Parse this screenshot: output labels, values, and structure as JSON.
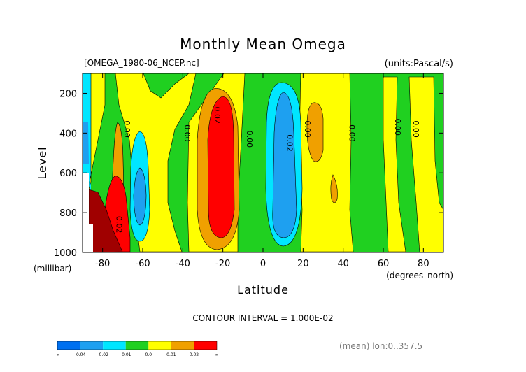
{
  "header": {
    "title": "Monthly Mean Omega",
    "file_label": "[OMEGA_1980-06_NCEP.nc]",
    "units_label": "(units:Pascal/s)"
  },
  "footer": {
    "contour_interval": "CONTOUR INTERVAL = 1.000E-02",
    "mean_note": "(mean) lon:0..357.5"
  },
  "chart_data": {
    "type": "heatmap",
    "title": "Monthly Mean Omega",
    "xlabel": "Latitude",
    "xunits": "(degrees_north)",
    "ylabel": "Level",
    "yunits": "(millibar)",
    "xlim": [
      -90,
      90
    ],
    "ylim": [
      1000,
      100
    ],
    "x_ticks": [
      -80,
      -60,
      -40,
      -20,
      0,
      20,
      40,
      60,
      80
    ],
    "y_ticks": [
      200,
      400,
      600,
      800,
      1000
    ],
    "contour_labels": [
      {
        "text": "0.00",
        "lat": -69,
        "level": 380
      },
      {
        "text": "0.00",
        "lat": -39,
        "level": 400
      },
      {
        "text": "0.02",
        "lat": -24,
        "level": 310
      },
      {
        "text": "0.00",
        "lat": -8,
        "level": 430
      },
      {
        "text": "0.02",
        "lat": 12,
        "level": 450
      },
      {
        "text": "0.00",
        "lat": 21,
        "level": 380
      },
      {
        "text": "0.00",
        "lat": 43,
        "level": 400
      },
      {
        "text": "0.00",
        "lat": 66,
        "level": 370
      },
      {
        "text": "0.00",
        "lat": 75,
        "level": 380
      },
      {
        "text": "0.02",
        "lat": -73,
        "level": 860
      }
    ],
    "legend": {
      "colors": [
        "#0070f0",
        "#1ea0f0",
        "#00e6ff",
        "#20d020",
        "#ffff00",
        "#f0a000",
        "#ff0000"
      ],
      "tick_labels": [
        "-∞",
        "-0.04",
        "-0.02",
        "-0.01",
        "0.0",
        "0.01",
        "0.02",
        "∞"
      ]
    }
  },
  "colors": {
    "green": "#20d020",
    "yellow": "#ffff00",
    "orange": "#f0a000",
    "red": "#ff0000",
    "darkred": "#a00000",
    "cyan": "#00e6ff",
    "blue": "#1ea0f0"
  }
}
